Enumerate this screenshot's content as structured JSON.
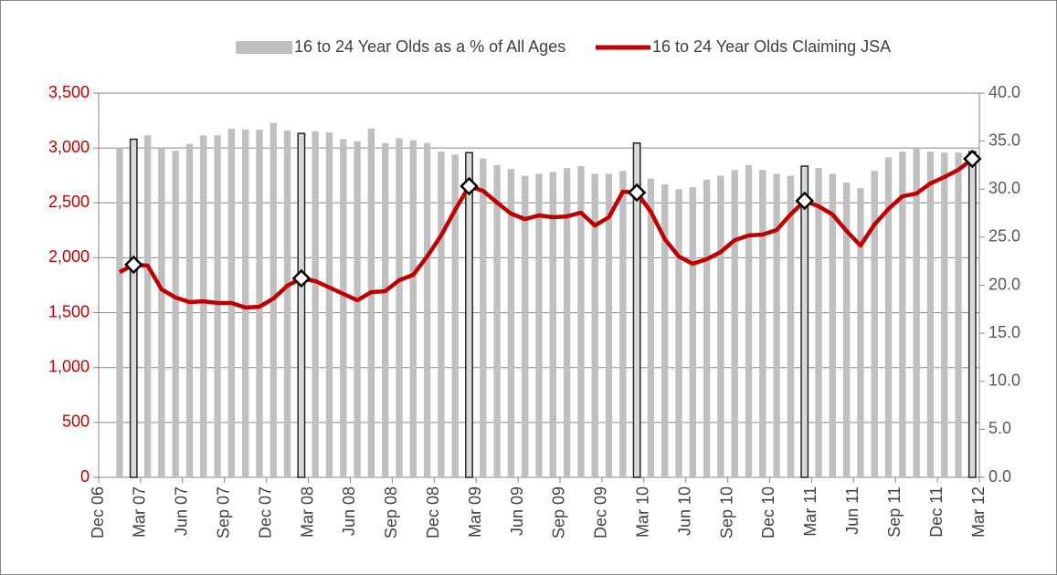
{
  "chart_data": {
    "type": "bar-line",
    "xticks": [
      "Dec 06",
      "Mar 07",
      "Jun 07",
      "Sep 07",
      "Dec 07",
      "Mar 08",
      "Jun 08",
      "Sep 08",
      "Dec 08",
      "Mar 09",
      "Jun 09",
      "Sep 09",
      "Dec 09",
      "Mar 10",
      "Jun 10",
      "Sep 10",
      "Dec 10",
      "Mar 11",
      "Jun 11",
      "Sep 11",
      "Dec 11",
      "Mar 12"
    ],
    "highlight_indices": [
      2,
      14,
      26,
      38,
      50,
      62
    ],
    "series": [
      {
        "name": "16 to 24 Year Olds as a % of All Ages",
        "type": "bar",
        "axis": "y2",
        "color": "#bfbfbf",
        "values": [
          null,
          34.2,
          35.2,
          35.6,
          34.2,
          34.0,
          34.7,
          35.6,
          35.6,
          36.3,
          36.2,
          36.2,
          36.9,
          36.1,
          35.8,
          36.0,
          35.9,
          35.2,
          35.0,
          36.3,
          34.8,
          35.3,
          35.1,
          34.8,
          33.9,
          33.6,
          33.8,
          33.2,
          32.5,
          32.1,
          31.4,
          31.6,
          31.8,
          32.2,
          32.4,
          31.6,
          31.6,
          31.9,
          34.8,
          31.1,
          30.5,
          30.0,
          30.2,
          31.0,
          31.4,
          32.0,
          32.5,
          32.0,
          31.6,
          31.4,
          32.4,
          32.2,
          31.6,
          30.7,
          30.1,
          31.9,
          33.3,
          33.9,
          34.2,
          33.9,
          33.8,
          33.8,
          33.9
        ]
      },
      {
        "name": "16 to 24 Year Olds Claiming JSA",
        "type": "line",
        "axis": "y",
        "color": "#c00000",
        "values": [
          null,
          1870,
          1937,
          1929,
          1712,
          1638,
          1596,
          1604,
          1588,
          1588,
          1546,
          1554,
          1629,
          1746,
          1812,
          1787,
          1729,
          1671,
          1613,
          1687,
          1696,
          1796,
          1845,
          2012,
          2203,
          2436,
          2652,
          2610,
          2502,
          2402,
          2352,
          2386,
          2369,
          2377,
          2411,
          2294,
          2369,
          2602,
          2594,
          2419,
          2170,
          2012,
          1945,
          1987,
          2053,
          2161,
          2203,
          2211,
          2253,
          2394,
          2519,
          2469,
          2394,
          2244,
          2111,
          2303,
          2444,
          2560,
          2585,
          2677,
          2735,
          2801,
          2901
        ]
      }
    ],
    "ylim": [
      0,
      3500
    ],
    "yticks": [
      0,
      {
        "value": 500,
        "label": "500"
      },
      {
        "value": 1000,
        "label": "1,000"
      },
      {
        "value": 1500,
        "label": "1,500"
      },
      {
        "value": 2000,
        "label": "2,000"
      },
      {
        "value": 2500,
        "label": "2,500"
      },
      {
        "value": 3000,
        "label": "3,000"
      },
      {
        "value": 3500,
        "label": "3,500"
      }
    ],
    "y2lim": [
      0,
      40
    ],
    "y2ticks": [
      {
        "value": 0,
        "label": "0.0"
      },
      {
        "value": 5,
        "label": "5.0"
      },
      {
        "value": 10,
        "label": "10.0"
      },
      {
        "value": 15,
        "label": "15.0"
      },
      {
        "value": 20,
        "label": "20.0"
      },
      {
        "value": 25,
        "label": "25.0"
      },
      {
        "value": 30,
        "label": "30.0"
      },
      {
        "value": 35,
        "label": "35.0"
      },
      {
        "value": 40,
        "label": "40.0"
      }
    ],
    "ytick_color": "#c00000",
    "y2tick_color": "#595959",
    "grid": true
  }
}
